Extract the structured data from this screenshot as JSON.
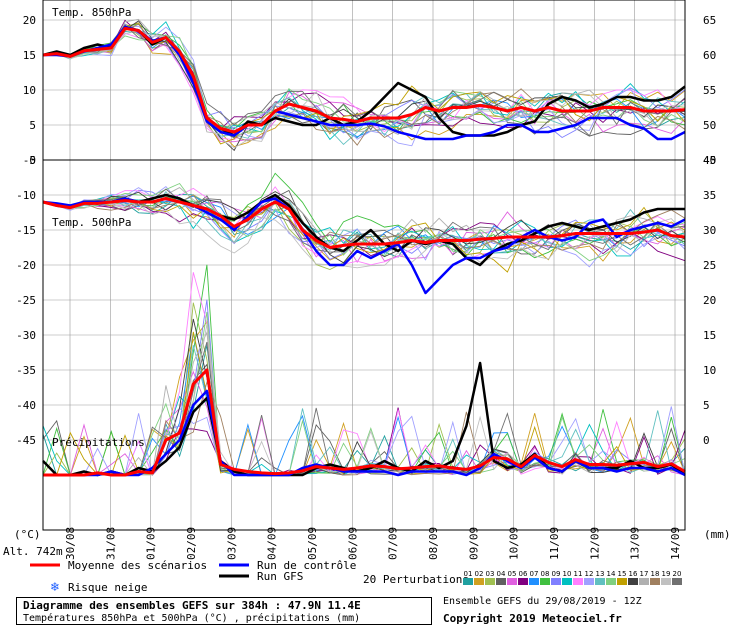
{
  "chart_data": {
    "type": "line",
    "panels": [
      {
        "title": "Temp. 850hPa",
        "left_axis_ticks": [
          20,
          15,
          10,
          5,
          0
        ],
        "right_axis_ticks": [
          65,
          60,
          55,
          50,
          45
        ],
        "ylim": [
          0,
          20
        ],
        "series": [
          {
            "name": "Moyenne des scénarios",
            "color": "#ff0000",
            "values": [
              15,
              15.2,
              14.8,
              15.6,
              15.8,
              16,
              18.8,
              18.5,
              16.8,
              17.5,
              15.5,
              12,
              6,
              4.5,
              4,
              5,
              5,
              7,
              8,
              7.5,
              7,
              6,
              5.8,
              5.5,
              6,
              6,
              6,
              6.5,
              7.5,
              7,
              7.5,
              7.5,
              7.8,
              7.5,
              7,
              7.5,
              7,
              7.5,
              7,
              7,
              7,
              7.5,
              7.5,
              7.5,
              7,
              7,
              7,
              7.2
            ]
          },
          {
            "name": "Run de contrôle",
            "color": "#0000ff",
            "values": [
              15,
              15,
              14.8,
              15.5,
              16,
              16.5,
              19,
              18.5,
              17,
              17.5,
              15,
              11,
              5.5,
              4,
              3.5,
              5,
              5,
              7,
              6.5,
              6,
              5.5,
              5,
              5,
              5,
              5.2,
              4.8,
              4,
              3.5,
              3,
              3,
              3,
              3.5,
              3.5,
              4,
              5,
              5,
              4,
              4,
              4.5,
              5,
              6,
              6,
              6,
              5,
              4.5,
              3,
              3,
              4
            ]
          },
          {
            "name": "Run GFS",
            "color": "#000000",
            "values": [
              15,
              15.5,
              15,
              16,
              16.5,
              16,
              19,
              18.5,
              16.5,
              17.5,
              15,
              11,
              6,
              4.5,
              3.5,
              5.5,
              5,
              6,
              5.5,
              5,
              5,
              6,
              5,
              5.5,
              7,
              9,
              11,
              10,
              9,
              6,
              4,
              3.5,
              3.5,
              3.5,
              4,
              5,
              5.5,
              8,
              9,
              8.5,
              7.5,
              8,
              9,
              9,
              8.5,
              8.5,
              9,
              10.5
            ]
          }
        ]
      },
      {
        "title": "Temp. 500hPa",
        "left_axis_ticks": [
          -5,
          -10,
          -15,
          -20,
          -25,
          -30,
          -35,
          -40,
          -45
        ],
        "right_axis_ticks": [
          40,
          35,
          30,
          25,
          20,
          15,
          10,
          5,
          0
        ],
        "ylim": [
          -45,
          -5
        ],
        "series": [
          {
            "name": "Moyenne des scénarios",
            "color": "#ff0000",
            "values": [
              -11,
              -11.5,
              -11.8,
              -11.2,
              -11.2,
              -11,
              -10.8,
              -11,
              -11,
              -10.5,
              -11,
              -11.5,
              -12,
              -13,
              -14.5,
              -13.5,
              -12,
              -11,
              -12,
              -15,
              -16.5,
              -17.5,
              -17.2,
              -17,
              -17,
              -17,
              -16.8,
              -16.5,
              -16.8,
              -16.5,
              -16.5,
              -16.5,
              -16.3,
              -16.2,
              -16,
              -16,
              -16,
              -16,
              -15.8,
              -15.5,
              -15.5,
              -15.5,
              -15.5,
              -15.5,
              -15.3,
              -15,
              -15.8,
              -16
            ]
          },
          {
            "name": "Run de contrôle",
            "color": "#0000ff",
            "values": [
              -11,
              -11.2,
              -11.5,
              -11,
              -11,
              -11,
              -10.5,
              -11,
              -11,
              -10.5,
              -11,
              -11.5,
              -12.5,
              -13.5,
              -15,
              -13,
              -11,
              -10.5,
              -12,
              -15,
              -18,
              -20,
              -20,
              -18,
              -19,
              -18,
              -17,
              -20,
              -24,
              -22,
              -20,
              -19,
              -19,
              -18,
              -17.5,
              -16,
              -15,
              -16,
              -16.5,
              -16,
              -14,
              -13.5,
              -16,
              -15,
              -14.5,
              -14,
              -14.5,
              -13.5
            ]
          },
          {
            "name": "Run GFS",
            "color": "#000000",
            "values": [
              -11,
              -11.5,
              -11.8,
              -11.2,
              -11,
              -11,
              -10.5,
              -11,
              -10.5,
              -10,
              -10.5,
              -11.5,
              -12,
              -13,
              -13.5,
              -12.5,
              -11,
              -10,
              -11.5,
              -14,
              -16,
              -17.5,
              -18,
              -16.5,
              -15,
              -17,
              -18,
              -16.5,
              -17,
              -16.5,
              -17,
              -19,
              -20,
              -18,
              -17,
              -16.5,
              -15.5,
              -14.5,
              -14,
              -14.5,
              -15,
              -14.5,
              -14,
              -13.5,
              -12.5,
              -12,
              -12,
              -12
            ]
          }
        ]
      },
      {
        "title": "Précipitations",
        "right_axis_ticks": [
          15,
          10,
          5,
          0
        ],
        "ylim": [
          0,
          20
        ],
        "series": [
          {
            "name": "Moyenne des scénarios",
            "color": "#ff0000",
            "values": [
              0,
              0,
              0,
              0,
              0.3,
              0,
              0,
              0.5,
              0.3,
              5,
              6,
              13,
              15,
              1.5,
              0.8,
              0.5,
              0.3,
              0.2,
              0.3,
              0.6,
              1.2,
              1,
              0.8,
              1,
              1.3,
              1.2,
              0.9,
              1,
              1.2,
              1.3,
              1,
              0.8,
              1.3,
              2.5,
              2.3,
              1.2,
              2.8,
              1.8,
              1.2,
              2.2,
              1.5,
              1.5,
              1.4,
              1.6,
              1.8,
              1.2,
              1.6,
              0.5
            ]
          },
          {
            "name": "Run de contrôle",
            "color": "#0000ff",
            "values": [
              0,
              0,
              0,
              0,
              0,
              0.5,
              0,
              0,
              1,
              3,
              5,
              10,
              12,
              2,
              0,
              0,
              0,
              0,
              0,
              1,
              1.5,
              1,
              0.5,
              0.5,
              0.5,
              0.5,
              0,
              0.5,
              0.5,
              0.5,
              0.5,
              0,
              1,
              3,
              2,
              1,
              2.5,
              1,
              0.5,
              2,
              1,
              1,
              0.5,
              1,
              1,
              0.5,
              1,
              0
            ]
          },
          {
            "name": "Run GFS",
            "color": "#000000",
            "values": [
              2,
              0,
              0,
              0.5,
              0,
              0.5,
              0,
              1,
              0.5,
              2,
              4,
              9,
              11,
              2,
              0.5,
              0,
              0,
              0,
              0,
              0,
              1,
              1.5,
              1,
              0.5,
              1,
              2,
              1,
              0.5,
              2,
              1,
              2,
              7,
              16,
              2,
              1,
              1.5,
              3,
              1,
              0.5,
              2,
              1,
              1,
              1,
              2,
              1,
              1,
              1.5,
              0
            ]
          }
        ]
      }
    ],
    "x_ticks": [
      "30/08",
      "31/08",
      "01/09",
      "02/09",
      "03/09",
      "04/09",
      "05/09",
      "06/09",
      "07/09",
      "08/09",
      "09/09",
      "10/09",
      "11/09",
      "12/09",
      "13/09",
      "14/09"
    ],
    "left_unit": "(°C)",
    "right_unit": "(mm)",
    "altitude_label": "Alt. 742m",
    "legend": {
      "mean": "Moyenne des scénarios",
      "control": "Run de contrôle",
      "gfs": "Run GFS",
      "snow": "Risque neige",
      "perturbations": "20 Perturbations",
      "perturbation_numbers": [
        "01",
        "02",
        "03",
        "04",
        "05",
        "06",
        "07",
        "08",
        "09",
        "10",
        "11",
        "12",
        "13",
        "14",
        "15",
        "16",
        "17",
        "18",
        "19",
        "20"
      ],
      "perturbation_colors": [
        "#20a0a0",
        "#d0a020",
        "#a0c050",
        "#606060",
        "#e060e0",
        "#800080",
        "#2090ff",
        "#40c040",
        "#8080ff",
        "#00c0c0",
        "#ff80ff",
        "#a0a0ff",
        "#60c0c0",
        "#80d080",
        "#c0a000",
        "#404040",
        "#b0b0b0",
        "#a08060",
        "#c0c0c0",
        "#707070"
      ]
    },
    "grid": true
  },
  "footer": {
    "title": "Diagramme des ensembles GEFS sur 384h : 47.9N 11.4E",
    "subtitle": "Températures 850hPa et 500hPa (°C) , précipitations (mm)",
    "run": "Ensemble GEFS du 29/08/2019 - 12Z",
    "copyright": "Copyright 2019 Meteociel.fr"
  }
}
